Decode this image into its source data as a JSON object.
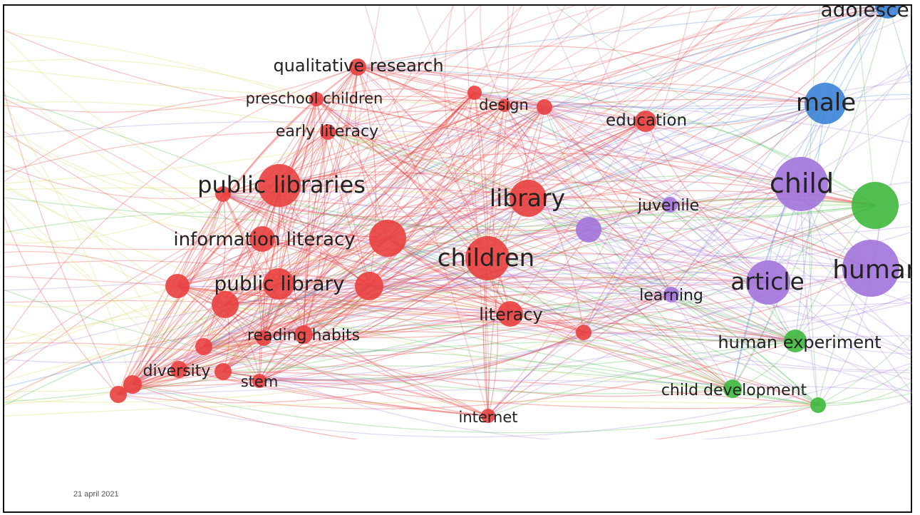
{
  "slide": {
    "footer_date": "21 april 2021"
  },
  "colors": {
    "cluster1": "#e8403f",
    "cluster2": "#a273dc",
    "cluster3": "#3a83d6",
    "cluster4": "#3fb83e",
    "cluster5": "#d8d45a",
    "label": "#222222"
  },
  "network": {
    "nodes": [
      {
        "label": "qualitative research",
        "cluster": 1
      },
      {
        "label": "preschool children",
        "cluster": 1
      },
      {
        "label": "early literacy",
        "cluster": 1
      },
      {
        "label": "design",
        "cluster": 1
      },
      {
        "label": "education",
        "cluster": 1
      },
      {
        "label": "public libraries",
        "cluster": 1
      },
      {
        "label": "library",
        "cluster": 1
      },
      {
        "label": "information literacy",
        "cluster": 1
      },
      {
        "label": "children",
        "cluster": 1
      },
      {
        "label": "public library",
        "cluster": 1
      },
      {
        "label": "literacy",
        "cluster": 1
      },
      {
        "label": "reading habits",
        "cluster": 1
      },
      {
        "label": "diversity",
        "cluster": 1
      },
      {
        "label": "stem",
        "cluster": 1
      },
      {
        "label": "internet",
        "cluster": 1
      },
      {
        "label": "juvenile",
        "cluster": 2
      },
      {
        "label": "learning",
        "cluster": 2
      },
      {
        "label": "article",
        "cluster": 2
      },
      {
        "label": "child",
        "cluster": 2
      },
      {
        "label": "human",
        "cluster": 2
      },
      {
        "label": "male",
        "cluster": 3
      },
      {
        "label": "adolescent",
        "cluster": 3
      },
      {
        "label": "human experiment",
        "cluster": 4
      },
      {
        "label": "child development",
        "cluster": 4
      }
    ]
  }
}
